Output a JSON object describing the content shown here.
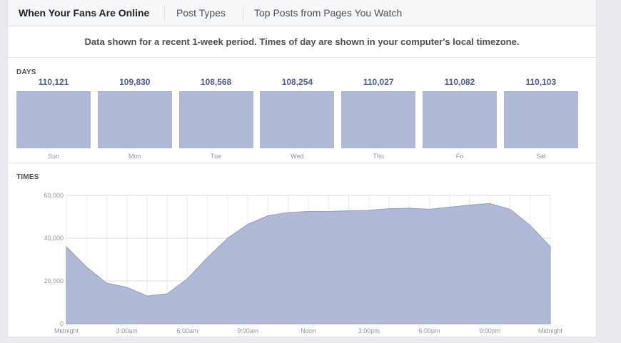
{
  "tabs": [
    {
      "label": "When Your Fans Are Online",
      "active": true
    },
    {
      "label": "Post Types",
      "active": false
    },
    {
      "label": "Top Posts from Pages You Watch",
      "active": false
    }
  ],
  "notice": "Data shown for a recent 1-week period. Times of day are shown in your computer's local timezone.",
  "days_section": {
    "label": "DAYS",
    "days": [
      {
        "name": "Sun",
        "value": "110,121"
      },
      {
        "name": "Mon",
        "value": "109,830"
      },
      {
        "name": "Tue",
        "value": "108,568"
      },
      {
        "name": "Wed",
        "value": "108,254"
      },
      {
        "name": "Thu",
        "value": "110,027"
      },
      {
        "name": "Fri",
        "value": "110,082"
      },
      {
        "name": "Sat",
        "value": "110,103"
      }
    ]
  },
  "times_section": {
    "label": "TIMES"
  },
  "colors": {
    "bar_fill": "#b0bad6",
    "value_text": "#4e5d94",
    "area_fill": "#b0bad6"
  },
  "chart_data": {
    "type": "area",
    "x": [
      0,
      1,
      2,
      3,
      4,
      5,
      6,
      7,
      8,
      9,
      10,
      11,
      12,
      13,
      14,
      15,
      16,
      17,
      18,
      19,
      20,
      21,
      22,
      23,
      24
    ],
    "series": [
      {
        "values": [
          36000,
          26500,
          19000,
          17000,
          13000,
          14000,
          21000,
          31000,
          40000,
          46500,
          50500,
          52000,
          52500,
          52500,
          52800,
          53000,
          53800,
          54000,
          53500,
          54500,
          55500,
          56200,
          53500,
          46000,
          36000
        ]
      }
    ],
    "ylim": [
      0,
      60000
    ],
    "yticks": [
      "0",
      "20,000",
      "40,000",
      "60,000"
    ],
    "xtick_labels": [
      "Midnight",
      "3:00am",
      "6:00am",
      "9:00am",
      "Noon",
      "3:00pm",
      "6:00pm",
      "9:00pm",
      "Midnight"
    ],
    "grid": true
  }
}
